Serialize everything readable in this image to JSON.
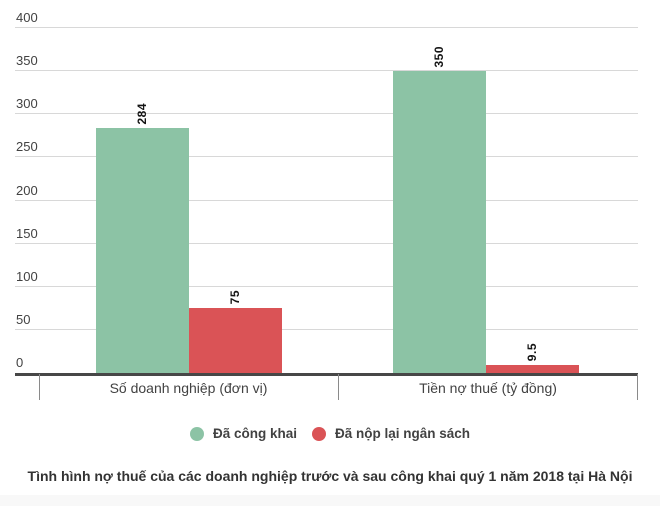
{
  "chart_data": {
    "type": "bar",
    "title": "Tình hình nợ thuế của các doanh nghiệp trước và sau công khai quý 1 năm 2018 tại Hà Nội",
    "categories": [
      "Số doanh nghiệp (đơn vị)",
      "Tiền nợ thuế (tỷ đồng)"
    ],
    "series": [
      {
        "name": "Đã công khai",
        "color": "#8cc3a5",
        "values": [
          284,
          350
        ]
      },
      {
        "name": "Đã nộp lại ngân sách",
        "color": "#da5356",
        "values": [
          75,
          9.5
        ]
      }
    ],
    "ylim": [
      0,
      400
    ],
    "yticks": [
      0,
      50,
      100,
      150,
      200,
      250,
      300,
      350,
      400
    ],
    "grid": true,
    "legend_position": "bottom",
    "grid_color": "#d8d8d8",
    "axis_color": "#474747",
    "label_color": "#424242",
    "value_label_color": "#141414"
  }
}
